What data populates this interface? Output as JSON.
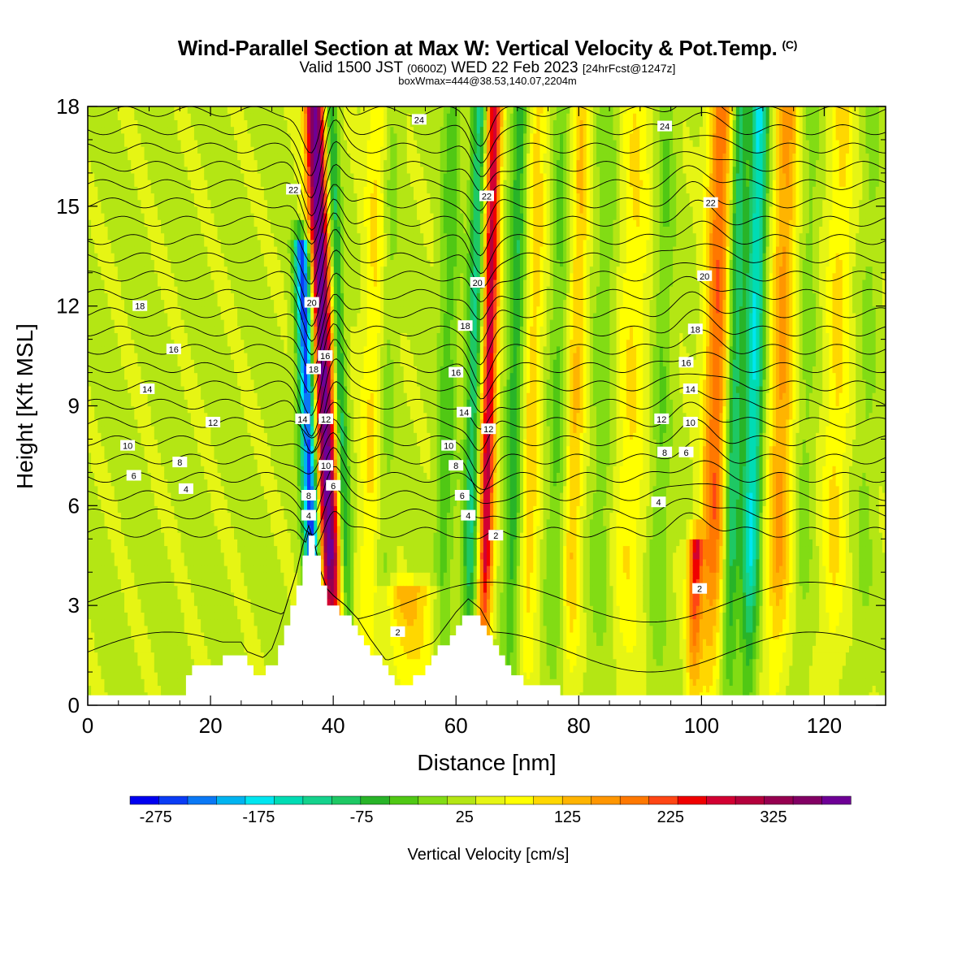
{
  "header": {
    "title": "Wind-Parallel Section at Max W: Vertical Velocity & Pot.Temp.",
    "copyright": "(C)",
    "valid_prefix": "Valid 1500 JST",
    "valid_utc": "(0600Z)",
    "valid_date": "WED 22 Feb 2023",
    "forecast": "[24hrFcst@1247z]",
    "boxinfo": "boxWmax=444@38.53,140.07,2204m"
  },
  "chart_data": {
    "type": "heatmap",
    "xlabel": "Distance [nm]",
    "ylabel": "Height [Kft MSL]",
    "xlim": [
      0,
      130
    ],
    "ylim": [
      0,
      18
    ],
    "x_ticks": [
      0,
      20,
      40,
      60,
      80,
      100,
      120
    ],
    "y_ticks": [
      0,
      3,
      6,
      9,
      12,
      15,
      18
    ],
    "colorbar": {
      "label": "Vertical Velocity [cm/s]",
      "range": [
        -300,
        400
      ],
      "step": 25,
      "tick_labels": [
        -275,
        -175,
        -75,
        25,
        125,
        225,
        325
      ],
      "colors": [
        "#0000f0",
        "#0a3cf5",
        "#0a78f5",
        "#00b4f0",
        "#00e6f0",
        "#00dcb4",
        "#14d28c",
        "#1ec864",
        "#28b428",
        "#50c814",
        "#82dc14",
        "#b4e614",
        "#e6f514",
        "#ffff00",
        "#ffd700",
        "#ffb400",
        "#ff9600",
        "#ff7800",
        "#ff4614",
        "#f00000",
        "#d20032",
        "#b4003c",
        "#960050",
        "#820064",
        "#6e0096"
      ]
    },
    "w_bands": [
      {
        "x": 35.8,
        "half_width": 1.3,
        "peak": -270,
        "y_top": 14
      },
      {
        "x": 38.6,
        "half_width": 1.6,
        "peak": 330,
        "y_top": 18
      },
      {
        "x": 41.2,
        "half_width": 1.0,
        "peak": -110,
        "y_top": 18
      },
      {
        "x": 46.5,
        "half_width": 2.0,
        "peak": 60,
        "y_top": 18
      },
      {
        "x": 48.5,
        "half_width": 1.5,
        "peak": -40,
        "y_top": 18
      },
      {
        "x": 53,
        "half_width": 4.5,
        "peak": 110,
        "y_top": 3.5
      },
      {
        "x": 58.5,
        "half_width": 1.5,
        "peak": -60,
        "y_top": 18
      },
      {
        "x": 62.8,
        "half_width": 1.2,
        "peak": -120,
        "y_top": 18
      },
      {
        "x": 65.3,
        "half_width": 1.2,
        "peak": 230,
        "y_top": 18
      },
      {
        "x": 69.5,
        "half_width": 1.3,
        "peak": -90,
        "y_top": 18
      },
      {
        "x": 72.5,
        "half_width": 1.5,
        "peak": 70,
        "y_top": 18
      },
      {
        "x": 76.5,
        "half_width": 1.5,
        "peak": -50,
        "y_top": 18
      },
      {
        "x": 79.5,
        "half_width": 1.5,
        "peak": 80,
        "y_top": 18
      },
      {
        "x": 84,
        "half_width": 2.0,
        "peak": -35,
        "y_top": 18
      },
      {
        "x": 88.5,
        "half_width": 2.5,
        "peak": 55,
        "y_top": 18
      },
      {
        "x": 93.5,
        "half_width": 1.5,
        "peak": -45,
        "y_top": 18
      },
      {
        "x": 99.5,
        "half_width": 1.2,
        "peak": 200,
        "y_top": 5
      },
      {
        "x": 102.3,
        "half_width": 2.0,
        "peak": 150,
        "y_top": 18
      },
      {
        "x": 105.3,
        "half_width": 1.3,
        "peak": -120,
        "y_top": 18
      },
      {
        "x": 108.5,
        "half_width": 1.5,
        "peak": -170,
        "y_top": 18
      },
      {
        "x": 113,
        "half_width": 2.0,
        "peak": 110,
        "y_top": 18
      },
      {
        "x": 117,
        "half_width": 1.5,
        "peak": -30,
        "y_top": 18
      },
      {
        "x": 122,
        "half_width": 2.0,
        "peak": 60,
        "y_top": 18
      },
      {
        "x": 127,
        "half_width": 1.5,
        "peak": -25,
        "y_top": 18
      }
    ],
    "terrain": [
      [
        0,
        0.3
      ],
      [
        15,
        0.3
      ],
      [
        16,
        0.9
      ],
      [
        17,
        1.2
      ],
      [
        21,
        1.2
      ],
      [
        22,
        1.5
      ],
      [
        25,
        1.5
      ],
      [
        26,
        1.2
      ],
      [
        27,
        0.9
      ],
      [
        28,
        0.9
      ],
      [
        30,
        1.3
      ],
      [
        31,
        1.8
      ],
      [
        32,
        2.4
      ],
      [
        33,
        3.0
      ],
      [
        34,
        3.6
      ],
      [
        35,
        4.4
      ],
      [
        36,
        5.0
      ],
      [
        37,
        4.4
      ],
      [
        38,
        3.6
      ],
      [
        39,
        3.1
      ],
      [
        40,
        2.9
      ],
      [
        42,
        2.6
      ],
      [
        44,
        2.2
      ],
      [
        46,
        1.6
      ],
      [
        48,
        1.1
      ],
      [
        50,
        0.6
      ],
      [
        52,
        0.6
      ],
      [
        54,
        0.9
      ],
      [
        56,
        1.4
      ],
      [
        58,
        1.9
      ],
      [
        60,
        2.4
      ],
      [
        62,
        2.8
      ],
      [
        64,
        2.5
      ],
      [
        66,
        1.8
      ],
      [
        68,
        1.1
      ],
      [
        70,
        0.8
      ],
      [
        72,
        0.6
      ],
      [
        74,
        0.6
      ],
      [
        76,
        0.5
      ],
      [
        78,
        0.3
      ],
      [
        90,
        0.3
      ],
      [
        130,
        0.3
      ]
    ],
    "contour_labels": [
      {
        "text": "24",
        "x": 54,
        "y": 17.6
      },
      {
        "text": "24",
        "x": 94,
        "y": 17.4
      },
      {
        "text": "22",
        "x": 33.5,
        "y": 15.5
      },
      {
        "text": "22",
        "x": 65,
        "y": 15.3
      },
      {
        "text": "22",
        "x": 101.5,
        "y": 15.1
      },
      {
        "text": "20",
        "x": 36.5,
        "y": 12.1
      },
      {
        "text": "20",
        "x": 63.5,
        "y": 12.7
      },
      {
        "text": "20",
        "x": 100.5,
        "y": 12.9
      },
      {
        "text": "18",
        "x": 8.5,
        "y": 12.0
      },
      {
        "text": "18",
        "x": 36.8,
        "y": 10.1
      },
      {
        "text": "18",
        "x": 61.5,
        "y": 11.4
      },
      {
        "text": "18",
        "x": 99,
        "y": 11.3
      },
      {
        "text": "16",
        "x": 14,
        "y": 10.7
      },
      {
        "text": "16",
        "x": 38.7,
        "y": 10.5
      },
      {
        "text": "16",
        "x": 60,
        "y": 10.0
      },
      {
        "text": "16",
        "x": 97.5,
        "y": 10.3
      },
      {
        "text": "14",
        "x": 9.7,
        "y": 9.5
      },
      {
        "text": "14",
        "x": 35,
        "y": 8.6
      },
      {
        "text": "14",
        "x": 61.3,
        "y": 8.8
      },
      {
        "text": "14",
        "x": 98.2,
        "y": 9.5
      },
      {
        "text": "12",
        "x": 20.4,
        "y": 8.5
      },
      {
        "text": "12",
        "x": 38.8,
        "y": 8.6
      },
      {
        "text": "12",
        "x": 65.3,
        "y": 8.3
      },
      {
        "text": "12",
        "x": 93.5,
        "y": 8.6
      },
      {
        "text": "10",
        "x": 6.5,
        "y": 7.8
      },
      {
        "text": "10",
        "x": 38.8,
        "y": 7.2
      },
      {
        "text": "10",
        "x": 58.8,
        "y": 7.8
      },
      {
        "text": "10",
        "x": 98.2,
        "y": 8.5
      },
      {
        "text": "8",
        "x": 15,
        "y": 7.3
      },
      {
        "text": "8",
        "x": 36,
        "y": 6.3
      },
      {
        "text": "8",
        "x": 60,
        "y": 7.2
      },
      {
        "text": "8",
        "x": 94,
        "y": 7.6
      },
      {
        "text": "6",
        "x": 7.5,
        "y": 6.9
      },
      {
        "text": "6",
        "x": 40,
        "y": 6.6
      },
      {
        "text": "6",
        "x": 61,
        "y": 6.3
      },
      {
        "text": "6",
        "x": 97.5,
        "y": 7.6
      },
      {
        "text": "4",
        "x": 16,
        "y": 6.5
      },
      {
        "text": "4",
        "x": 36,
        "y": 5.7
      },
      {
        "text": "4",
        "x": 62,
        "y": 5.7
      },
      {
        "text": "4",
        "x": 93,
        "y": 6.1
      },
      {
        "text": "2",
        "x": 50.5,
        "y": 2.2
      },
      {
        "text": "2",
        "x": 66.5,
        "y": 5.1
      },
      {
        "text": "2",
        "x": 99.7,
        "y": 3.5
      }
    ]
  }
}
